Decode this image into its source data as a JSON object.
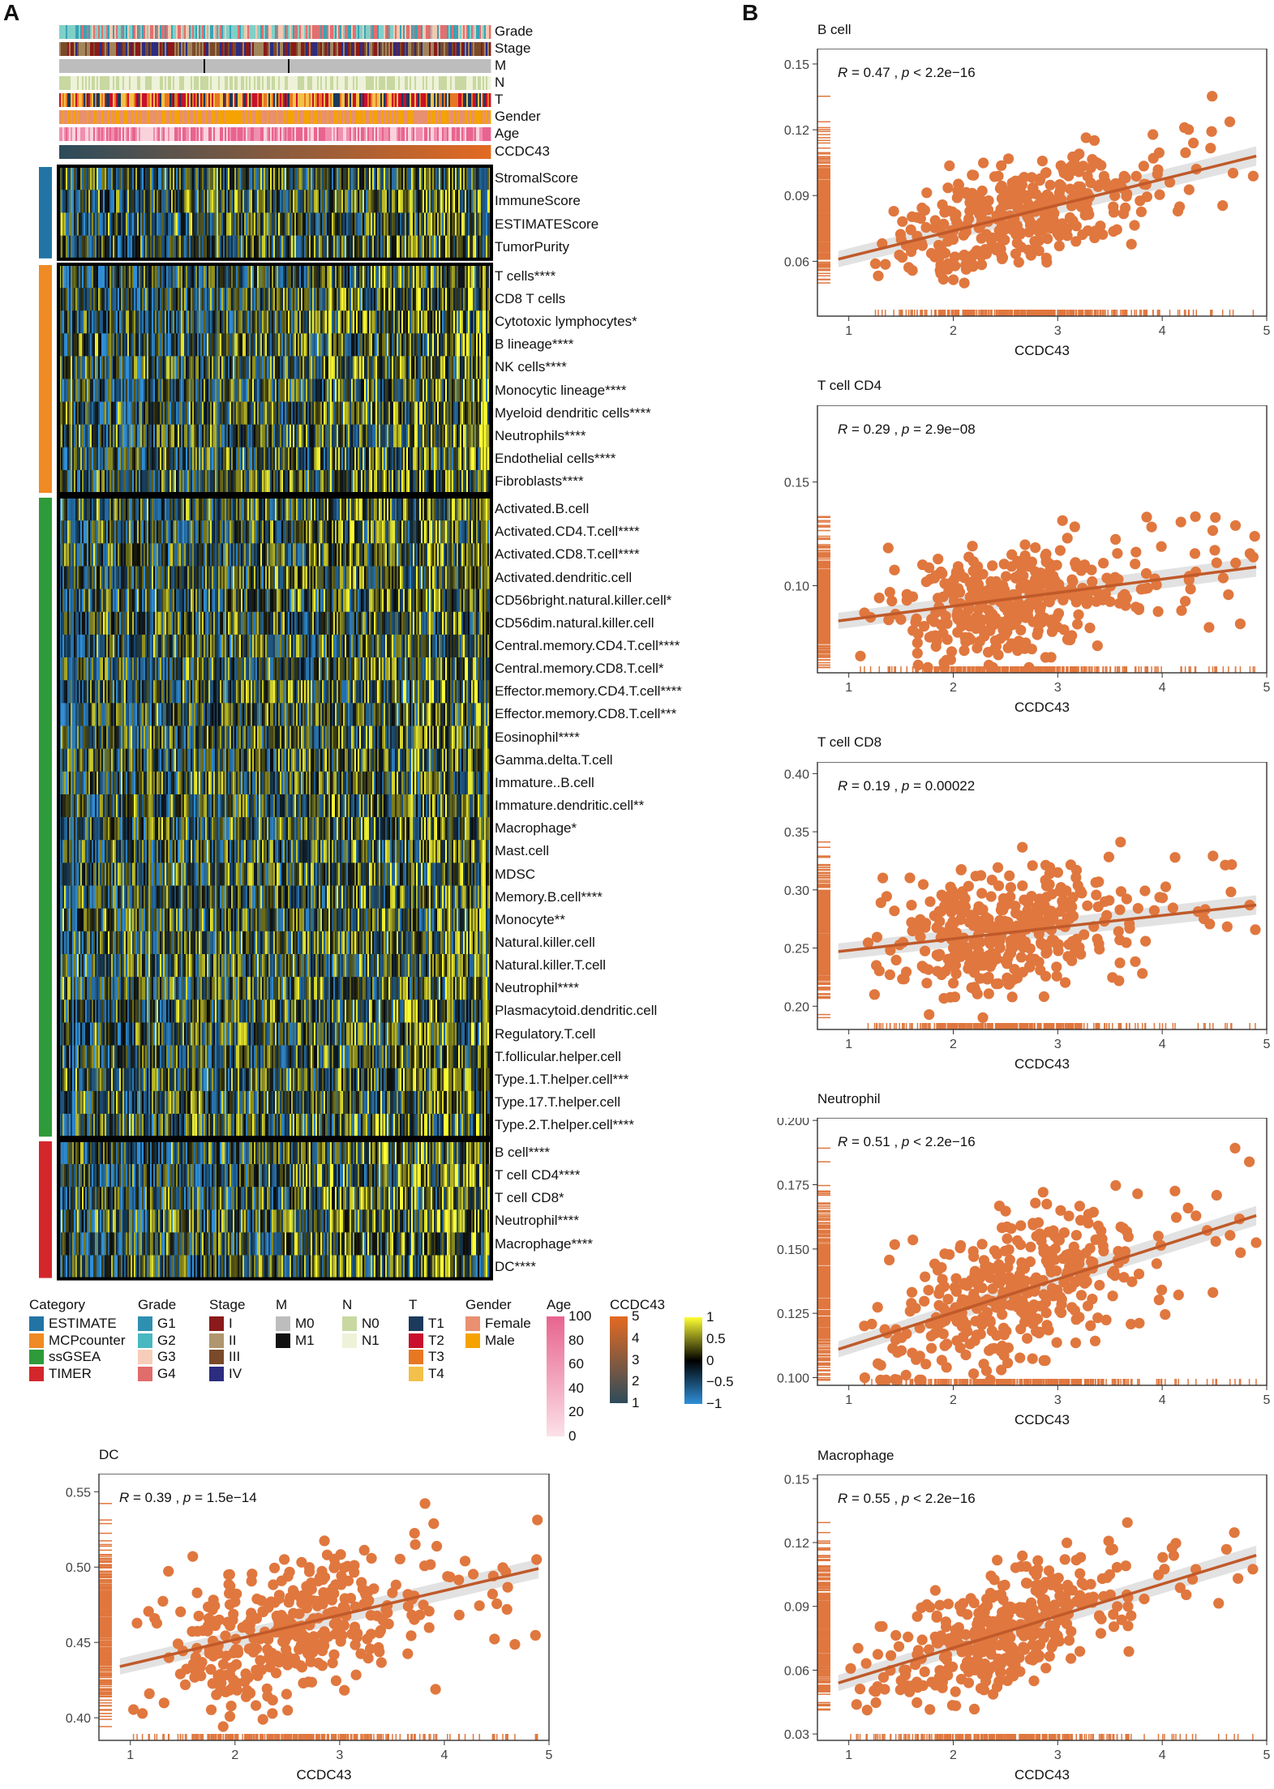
{
  "panels": {
    "a": "A",
    "b": "B"
  },
  "heatmap": {
    "annotation_tracks": [
      {
        "name": "Grade",
        "palette": [
          "#3aa3b5",
          "#7fd0c8",
          "#f2c9b0",
          "#e36f6f"
        ]
      },
      {
        "name": "Stage",
        "palette": [
          "#8b1a1a",
          "#a3855c",
          "#7a4a2a",
          "#2c2c80"
        ]
      },
      {
        "name": "M",
        "palette": [
          "#bdbdbd",
          "#000000"
        ]
      },
      {
        "name": "N",
        "palette": [
          "#c8d8a0",
          "#eef2d8"
        ]
      },
      {
        "name": "T",
        "palette": [
          "#1b3a5c",
          "#c8102e",
          "#e87722",
          "#f3c04a"
        ]
      },
      {
        "name": "Gender",
        "palette": [
          "#e89070",
          "#f5a300"
        ]
      },
      {
        "name": "Age",
        "palette": [
          "#f9d2dc",
          "#f08fb0",
          "#e8648f"
        ]
      },
      {
        "name": "CCDC43",
        "palette": [
          "#2d4b5a",
          "#e36a22"
        ]
      }
    ],
    "groups": [
      {
        "category": "ESTIMATE",
        "color": "#2274a5",
        "rows": [
          "StromalScore",
          "ImmuneScore",
          "ESTIMATEScore",
          "TumorPurity"
        ]
      },
      {
        "category": "MCPcounter",
        "color": "#f08a24",
        "rows": [
          "T cells****",
          "CD8 T cells",
          "Cytotoxic lymphocytes*",
          "B lineage****",
          "NK cells****",
          "Monocytic lineage****",
          "Myeloid dendritic cells****",
          "Neutrophils****",
          "Endothelial cells****",
          "Fibroblasts****"
        ]
      },
      {
        "category": "ssGSEA",
        "color": "#2e9a3a",
        "rows": [
          "Activated.B.cell",
          "Activated.CD4.T.cell****",
          "Activated.CD8.T.cell****",
          "Activated.dendritic.cell",
          "CD56bright.natural.killer.cell*",
          "CD56dim.natural.killer.cell",
          "Central.memory.CD4.T.cell****",
          "Central.memory.CD8.T.cell*",
          "Effector.memory.CD4.T.cell****",
          "Effector.memory.CD8.T.cell***",
          "Eosinophil****",
          "Gamma.delta.T.cell",
          "Immature..B.cell",
          "Immature.dendritic.cell**",
          "Macrophage*",
          "Mast.cell",
          "MDSC",
          "Memory.B.cell****",
          "Monocyte**",
          "Natural.killer.cell",
          "Natural.killer.T.cell",
          "Neutrophil****",
          "Plasmacytoid.dendritic.cell",
          "Regulatory.T.cell",
          "T.follicular.helper.cell",
          "Type.1.T.helper.cell***",
          "Type.17.T.helper.cell",
          "Type.2.T.helper.cell****"
        ]
      },
      {
        "category": "TIMER",
        "color": "#d3272c",
        "rows": [
          "B cell****",
          "T cell CD4****",
          "T cell CD8*",
          "Neutrophil****",
          "Macrophage****",
          "DC****"
        ]
      }
    ],
    "legends": {
      "category": {
        "title": "Category",
        "items": [
          {
            "label": "ESTIMATE",
            "color": "#2274a5"
          },
          {
            "label": "MCPcounter",
            "color": "#f08a24"
          },
          {
            "label": "ssGSEA",
            "color": "#2e9a3a"
          },
          {
            "label": "TIMER",
            "color": "#d3272c"
          }
        ]
      },
      "grade": {
        "title": "Grade",
        "items": [
          {
            "label": "G1",
            "color": "#2f8fb0"
          },
          {
            "label": "G2",
            "color": "#48b8c0"
          },
          {
            "label": "G3",
            "color": "#f6cdb8"
          },
          {
            "label": "G4",
            "color": "#e06c6c"
          }
        ]
      },
      "stage": {
        "title": "Stage",
        "items": [
          {
            "label": "I",
            "color": "#8b1a1a"
          },
          {
            "label": "II",
            "color": "#b0966e"
          },
          {
            "label": "III",
            "color": "#7a4a2a"
          },
          {
            "label": "IV",
            "color": "#2c2c80"
          }
        ]
      },
      "m": {
        "title": "M",
        "items": [
          {
            "label": "M0",
            "color": "#bdbdbd"
          },
          {
            "label": "M1",
            "color": "#111111"
          }
        ]
      },
      "n": {
        "title": "N",
        "items": [
          {
            "label": "N0",
            "color": "#c8d8a0"
          },
          {
            "label": "N1",
            "color": "#eef2d8"
          }
        ]
      },
      "t": {
        "title": "T",
        "items": [
          {
            "label": "T1",
            "color": "#1b3a5c"
          },
          {
            "label": "T2",
            "color": "#c8102e"
          },
          {
            "label": "T3",
            "color": "#e87722"
          },
          {
            "label": "T4",
            "color": "#f3c04a"
          }
        ]
      },
      "gender": {
        "title": "Gender",
        "items": [
          {
            "label": "Female",
            "color": "#e89070"
          },
          {
            "label": "Male",
            "color": "#f5a300"
          }
        ]
      },
      "age": {
        "title": "Age",
        "ticks": [
          "100",
          "80",
          "60",
          "40",
          "20",
          "0"
        ],
        "colors": [
          "#e8648f",
          "#fbe1e8"
        ]
      },
      "ccdc43": {
        "title": "CCDC43",
        "ticks": [
          "5",
          "4",
          "3",
          "2",
          "1"
        ],
        "colors": [
          "#e36a22",
          "#2d4b5a"
        ]
      },
      "zscore": {
        "ticks": [
          "1",
          "0.5",
          "0",
          "−0.5",
          "−1"
        ],
        "colors": [
          "#ffff33",
          "#000000",
          "#2f8fd8"
        ]
      }
    }
  },
  "chart_data": [
    {
      "type": "scatter",
      "title": "B cell",
      "xlabel": "CCDC43",
      "ylabel": "",
      "xlim": [
        0.7,
        5.0
      ],
      "ylim": [
        0.035,
        0.157
      ],
      "xticks": [
        1,
        2,
        3,
        4,
        5
      ],
      "yticks": [
        0.06,
        0.09,
        0.12,
        0.15
      ],
      "ytick_labels": [
        "0.06",
        "0.09",
        "0.12",
        "0.15"
      ],
      "annotation": {
        "r": "0.47",
        "p": "p < 2.2e−16"
      },
      "fit": {
        "x": [
          0.9,
          4.9
        ],
        "y": [
          0.061,
          0.108
        ]
      },
      "color": "#e0773e"
    },
    {
      "type": "scatter",
      "title": "T cell CD4",
      "xlabel": "CCDC43",
      "ylabel": "",
      "xlim": [
        0.7,
        5.0
      ],
      "ylim": [
        0.058,
        0.187
      ],
      "xticks": [
        1,
        2,
        3,
        4,
        5
      ],
      "yticks": [
        0.1,
        0.15
      ],
      "ytick_labels": [
        "0.10",
        "0.15"
      ],
      "annotation": {
        "r": "0.29",
        "p": "p = 2.9e−08"
      },
      "fit": {
        "x": [
          0.9,
          4.9
        ],
        "y": [
          0.083,
          0.109
        ]
      },
      "color": "#e0773e"
    },
    {
      "type": "scatter",
      "title": "T cell CD8",
      "xlabel": "CCDC43",
      "ylabel": "",
      "xlim": [
        0.7,
        5.0
      ],
      "ylim": [
        0.18,
        0.41
      ],
      "xticks": [
        1,
        2,
        3,
        4,
        5
      ],
      "yticks": [
        0.2,
        0.25,
        0.3,
        0.35,
        0.4
      ],
      "ytick_labels": [
        "0.20",
        "0.25",
        "0.30",
        "0.35",
        "0.40"
      ],
      "annotation": {
        "r": "0.19",
        "p": "p = 0.00022"
      },
      "fit": {
        "x": [
          0.9,
          4.9
        ],
        "y": [
          0.247,
          0.287
        ]
      },
      "color": "#e0773e"
    },
    {
      "type": "scatter",
      "title": "Neutrophil",
      "xlabel": "CCDC43",
      "ylabel": "",
      "xlim": [
        0.7,
        5.0
      ],
      "ylim": [
        0.097,
        0.201
      ],
      "xticks": [
        1,
        2,
        3,
        4,
        5
      ],
      "yticks": [
        0.1,
        0.125,
        0.15,
        0.175,
        0.2
      ],
      "ytick_labels": [
        "0.100",
        "0.125",
        "0.150",
        "0.175",
        "0.200"
      ],
      "annotation": {
        "r": "0.51",
        "p": "p < 2.2e−16"
      },
      "fit": {
        "x": [
          0.9,
          4.9
        ],
        "y": [
          0.111,
          0.163
        ]
      },
      "color": "#e0773e"
    },
    {
      "type": "scatter",
      "title": "Macrophage",
      "xlabel": "CCDC43",
      "ylabel": "",
      "xlim": [
        0.7,
        5.0
      ],
      "ylim": [
        0.027,
        0.152
      ],
      "xticks": [
        1,
        2,
        3,
        4,
        5
      ],
      "yticks": [
        0.03,
        0.06,
        0.09,
        0.12,
        0.15
      ],
      "ytick_labels": [
        "0.03",
        "0.06",
        "0.09",
        "0.12",
        "0.15"
      ],
      "annotation": {
        "r": "0.55",
        "p": "p < 2.2e−16"
      },
      "fit": {
        "x": [
          0.9,
          4.9
        ],
        "y": [
          0.054,
          0.114
        ]
      },
      "color": "#e0773e"
    },
    {
      "type": "scatter",
      "title": "DC",
      "xlabel": "CCDC43",
      "ylabel": "",
      "xlim": [
        0.7,
        5.0
      ],
      "ylim": [
        0.385,
        0.562
      ],
      "xticks": [
        1,
        2,
        3,
        4,
        5
      ],
      "yticks": [
        0.4,
        0.45,
        0.5,
        0.55
      ],
      "ytick_labels": [
        "0.40",
        "0.45",
        "0.50",
        "0.55"
      ],
      "annotation": {
        "r": "0.39",
        "p": "p = 1.5e−14"
      },
      "fit": {
        "x": [
          0.9,
          4.9
        ],
        "y": [
          0.434,
          0.499
        ]
      },
      "color": "#e0773e"
    }
  ]
}
